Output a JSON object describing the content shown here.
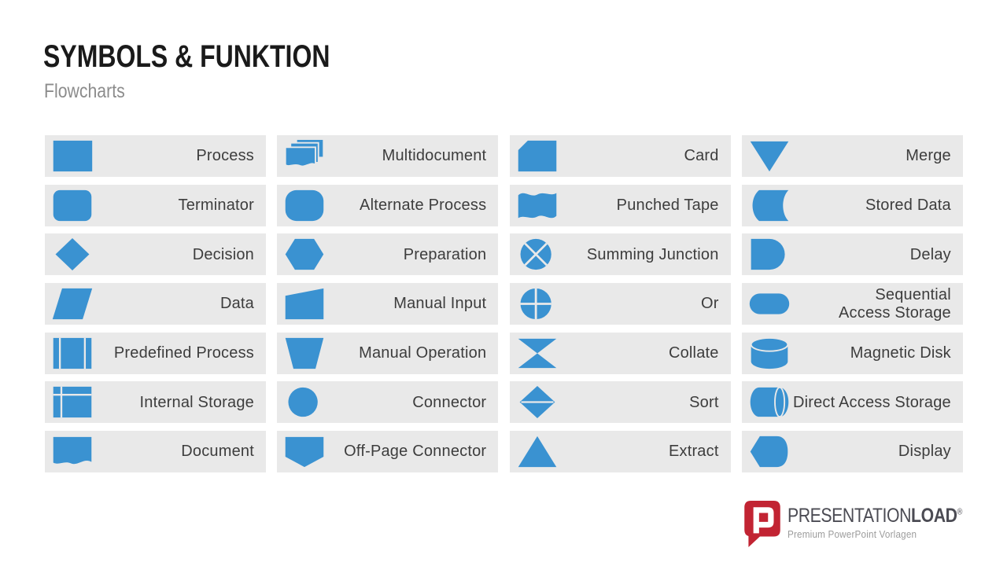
{
  "header": {
    "title": "SYMBOLS & FUNKTION",
    "subtitle": "Flowcharts"
  },
  "colors": {
    "accent": "#3A92D1",
    "cell_bg": "#E9E9E9",
    "label_color": "#3D3D3D",
    "title_color": "#1A1A1A",
    "subtitle_color": "#8C8C8C",
    "logo_red": "#C22433",
    "logo_text_color": "#4B4B53",
    "tagline_color": "#9C9C9C"
  },
  "grid": {
    "columns": 4,
    "rows": 7,
    "cells": [
      {
        "icon": "process",
        "label": "Process"
      },
      {
        "icon": "multidocument",
        "label": "Multidocument"
      },
      {
        "icon": "card",
        "label": "Card"
      },
      {
        "icon": "merge",
        "label": "Merge"
      },
      {
        "icon": "terminator",
        "label": "Terminator"
      },
      {
        "icon": "alternate-process",
        "label": "Alternate Process"
      },
      {
        "icon": "punched-tape",
        "label": "Punched Tape"
      },
      {
        "icon": "stored-data",
        "label": "Stored Data"
      },
      {
        "icon": "decision",
        "label": "Decision"
      },
      {
        "icon": "preparation",
        "label": "Preparation"
      },
      {
        "icon": "summing-junction",
        "label": "Summing Junction"
      },
      {
        "icon": "delay",
        "label": "Delay"
      },
      {
        "icon": "data",
        "label": "Data"
      },
      {
        "icon": "manual-input",
        "label": "Manual Input"
      },
      {
        "icon": "or",
        "label": "Or"
      },
      {
        "icon": "sequential-access-storage",
        "label": "Sequential\nAccess Storage"
      },
      {
        "icon": "predefined-process",
        "label": "Predefined Process"
      },
      {
        "icon": "manual-operation",
        "label": "Manual Operation"
      },
      {
        "icon": "collate",
        "label": "Collate"
      },
      {
        "icon": "magnetic-disk",
        "label": "Magnetic Disk"
      },
      {
        "icon": "internal-storage",
        "label": "Internal Storage"
      },
      {
        "icon": "connector",
        "label": "Connector"
      },
      {
        "icon": "sort",
        "label": "Sort"
      },
      {
        "icon": "direct-access-storage",
        "label": "Direct Access Storage"
      },
      {
        "icon": "document",
        "label": "Document"
      },
      {
        "icon": "off-page-connector",
        "label": "Off-Page Connector"
      },
      {
        "icon": "extract",
        "label": "Extract"
      },
      {
        "icon": "display",
        "label": "Display"
      }
    ]
  },
  "logo": {
    "brand_regular": "PRESENTATION",
    "brand_bold": "LOAD",
    "registered": "®",
    "tagline": "Premium PowerPoint Vorlagen"
  }
}
